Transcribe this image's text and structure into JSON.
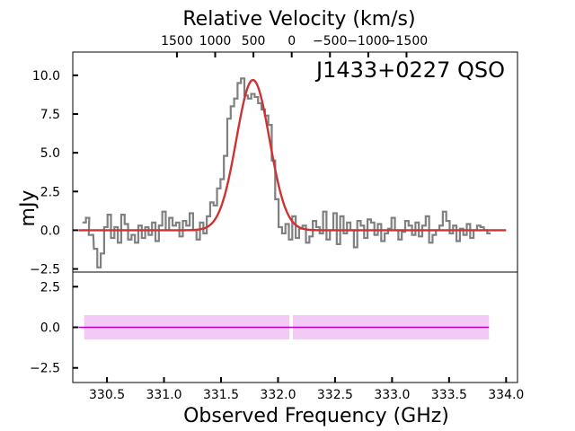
{
  "chart_data": {
    "type": "line",
    "title": "J1433+0227 QSO",
    "xlabel": "Observed Frequency (GHz)",
    "ylabel": "mJy",
    "top_xlabel": "Relative Velocity (km/s)",
    "top_panel": {
      "xlim": [
        330.2,
        334.1
      ],
      "ylim": [
        -2.7,
        11.5
      ],
      "yticks": [
        -2.5,
        0.0,
        2.5,
        5.0,
        7.5,
        10.0
      ],
      "ytick_labels": [
        "−2.5",
        "0.0",
        "2.5",
        "5.0",
        "7.5",
        "10.0"
      ],
      "series": [
        {
          "name": "spectrum",
          "style": "steps",
          "color": "#808080",
          "x": [
            330.3,
            330.33,
            330.36,
            330.4,
            330.43,
            330.46,
            330.49,
            330.52,
            330.55,
            330.58,
            330.61,
            330.64,
            330.67,
            330.7,
            330.73,
            330.76,
            330.79,
            330.82,
            330.85,
            330.88,
            330.91,
            330.94,
            330.97,
            331.0,
            331.03,
            331.06,
            331.09,
            331.12,
            331.15,
            331.18,
            331.21,
            331.24,
            331.27,
            331.3,
            331.33,
            331.36,
            331.39,
            331.42,
            331.45,
            331.48,
            331.51,
            331.54,
            331.57,
            331.6,
            331.63,
            331.66,
            331.69,
            331.72,
            331.75,
            331.78,
            331.81,
            331.84,
            331.87,
            331.9,
            331.93,
            331.96,
            331.99,
            332.02,
            332.05,
            332.08,
            332.11,
            332.14,
            332.17,
            332.2,
            332.23,
            332.26,
            332.29,
            332.32,
            332.35,
            332.38,
            332.41,
            332.44,
            332.47,
            332.5,
            332.53,
            332.56,
            332.59,
            332.62,
            332.65,
            332.68,
            332.71,
            332.74,
            332.77,
            332.8,
            332.83,
            332.86,
            332.89,
            332.92,
            332.95,
            332.98,
            333.01,
            333.04,
            333.07,
            333.1,
            333.13,
            333.16,
            333.19,
            333.22,
            333.25,
            333.28,
            333.31,
            333.34,
            333.37,
            333.4,
            333.43,
            333.46,
            333.49,
            333.52,
            333.55,
            333.58,
            333.61,
            333.64,
            333.67,
            333.7,
            333.73,
            333.76,
            333.79,
            333.82,
            333.85
          ],
          "values": [
            0.5,
            0.8,
            -0.3,
            -1.2,
            -2.4,
            -1.5,
            0.2,
            1.0,
            -0.5,
            0.2,
            -0.8,
            1.0,
            0.4,
            -0.6,
            -0.3,
            -0.8,
            0.3,
            -0.5,
            0.2,
            -0.3,
            0.5,
            -0.7,
            0.3,
            1.2,
            0.0,
            0.8,
            0.3,
            0.5,
            -0.4,
            0.6,
            0.3,
            1.1,
            0.0,
            -0.6,
            0.5,
            -0.2,
            0.9,
            1.8,
            1.6,
            2.7,
            3.3,
            4.8,
            7.2,
            8.0,
            8.5,
            9.5,
            9.8,
            8.7,
            8.5,
            8.8,
            8.6,
            8.2,
            7.8,
            7.4,
            6.8,
            4.5,
            2.0,
            0.2,
            -0.2,
            0.4,
            -0.6,
            0.9,
            -0.5,
            0.1,
            0.3,
            -0.8,
            -0.4,
            0.6,
            0.2,
            -0.2,
            1.2,
            -0.6,
            0.0,
            1.1,
            -0.9,
            0.9,
            -0.2,
            0.5,
            0.0,
            -1.1,
            0.6,
            0.3,
            -0.5,
            0.7,
            0.5,
            -0.3,
            0.4,
            -0.7,
            -0.2,
            0.1,
            0.8,
            0.0,
            -0.6,
            -0.1,
            0.6,
            0.3,
            -0.3,
            0.5,
            -0.4,
            0.3,
            0.9,
            -0.8,
            -0.3,
            0.0,
            0.3,
            1.2,
            0.6,
            -0.2,
            0.3,
            -0.7,
            0.1,
            -0.3,
            0.4,
            -0.5,
            0.0,
            0.3,
            0.2,
            0.0,
            -0.2
          ]
        },
        {
          "name": "gaussian-fit",
          "style": "line",
          "color": "#cc3333",
          "amplitude": 9.7,
          "center": 331.78,
          "sigma": 0.145,
          "x_range": [
            330.25,
            334.0
          ]
        }
      ]
    },
    "bottom_panel": {
      "ylim": [
        -3.4,
        3.4
      ],
      "yticks": [
        -2.5,
        0.0,
        2.5
      ],
      "ytick_labels": [
        "−2.5",
        "0.0",
        "2.5"
      ],
      "residual_line": {
        "y": 0.0,
        "x_range": [
          330.25,
          333.85
        ],
        "color": "#c000c0"
      },
      "error_band": {
        "color": "#e27fe9",
        "segments": [
          {
            "x_range": [
              330.3,
              332.1
            ],
            "halfwidth": 0.75
          },
          {
            "x_range": [
              332.13,
              333.85
            ],
            "halfwidth": 0.75
          }
        ]
      }
    },
    "x_ticks": [
      330.5,
      331.0,
      331.5,
      332.0,
      332.5,
      333.0,
      333.5,
      334.0
    ],
    "x_tick_labels": [
      "330.5",
      "331.0",
      "331.5",
      "332.0",
      "332.5",
      "333.0",
      "333.5",
      "334.0"
    ],
    "velocity_ticks": [
      1500,
      1000,
      500,
      0,
      -500,
      -1000,
      -1500
    ],
    "velocity_tick_labels": [
      "1500",
      "1000",
      "500",
      "0",
      "−500",
      "−1000",
      "−1500"
    ],
    "velocity_zero_freq": 332.12,
    "velocity_per_ghz": -1490
  }
}
